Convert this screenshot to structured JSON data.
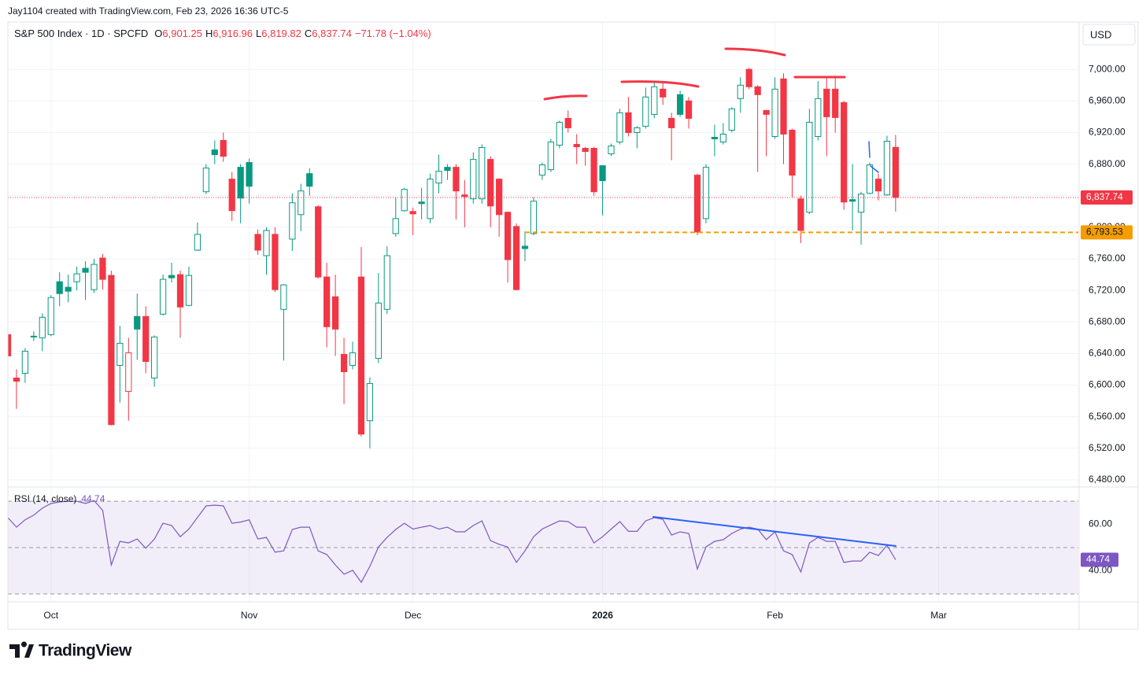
{
  "header": {
    "credit": "Jay1104 created with TradingView.com, Feb 23, 2026 16:36 UTC-5",
    "currency": "USD"
  },
  "footer": {
    "logo": "TradingView"
  },
  "chart_data": [
    {
      "type": "candlestick",
      "title": "S&P 500 Index · 1D · SPCFD",
      "legend_values": [
        {
          "key": "O",
          "value": "6,901.25"
        },
        {
          "key": "H",
          "value": "6,916.96"
        },
        {
          "key": "L",
          "value": "6,819.82"
        },
        {
          "key": "C",
          "value": "6,837.74"
        }
      ],
      "change": "−71.78 (−1.04%)",
      "up_color": "#089981",
      "down_color": "#f23645",
      "xlim": [
        0,
        124.2
      ],
      "xticks": [
        {
          "value": 5,
          "label": "Oct"
        },
        {
          "value": 28,
          "label": "Nov"
        },
        {
          "value": 47,
          "label": "Dec"
        },
        {
          "value": 69,
          "label": "2026"
        },
        {
          "value": 89,
          "label": "Feb"
        },
        {
          "value": 108,
          "label": "Mar"
        }
      ],
      "ylim": [
        6472,
        7060
      ],
      "yticks": [
        {
          "value": 6480,
          "label": "6,480.00"
        },
        {
          "value": 6520,
          "label": "6,520.00"
        },
        {
          "value": 6560,
          "label": "6,560.00"
        },
        {
          "value": 6600,
          "label": "6,600.00"
        },
        {
          "value": 6640,
          "label": "6,640.00"
        },
        {
          "value": 6680,
          "label": "6,680.00"
        },
        {
          "value": 6720,
          "label": "6,720.00"
        },
        {
          "value": 6760,
          "label": "6,760.00"
        },
        {
          "value": 6800,
          "label": "6,800.00"
        },
        {
          "value": 6840,
          "label": "6,840.00"
        },
        {
          "value": 6880,
          "label": "6,880.00"
        },
        {
          "value": 6920,
          "label": "6,920.00"
        },
        {
          "value": 6960,
          "label": "6,960.00"
        },
        {
          "value": 7000,
          "label": "7,000.00"
        }
      ],
      "grid": true,
      "open": [
        6664,
        6609,
        6615,
        6662,
        6660,
        6664,
        6731,
        6724,
        6731,
        6748,
        6721,
        6761,
        6739,
        6625,
        6592,
        6687,
        6687,
        6609,
        6690,
        6739,
        6740,
        6701,
        6771,
        6845,
        6898,
        6910,
        6861,
        6876,
        6882,
        6791,
        6764,
        6791,
        6696,
        6785,
        6816,
        6868,
        6826,
        6737,
        6712,
        6639,
        6625,
        6737,
        6555,
        6634,
        6696,
        6792,
        6821,
        6820,
        6832,
        6811,
        6856,
        6876,
        6876,
        6841,
        6836,
        6836,
        6886,
        6861,
        6819,
        6801,
        6776,
        6792,
        6866,
        6873,
        6904,
        6938,
        6905,
        6900,
        6900,
        6878,
        6893,
        6908,
        6945,
        6920,
        6928,
        6943,
        6975,
        6938,
        6968,
        6960,
        6866,
        6811,
        6914,
        6908,
        6923,
        6963,
        7000,
        6978,
        6948,
        6915,
        6988,
        6923,
        6836,
        6819,
        6915,
        6975,
        6975,
        6958,
        6835,
        6819,
        6843,
        6861,
        6841,
        6901.25
      ],
      "high": [
        6664,
        6620,
        6647,
        6668,
        6691,
        6714,
        6743,
        6740,
        6750,
        6757,
        6760,
        6766,
        6745,
        6675,
        6660,
        6716,
        6700,
        6663,
        6740,
        6755,
        6745,
        6750,
        6806,
        6880,
        6910,
        6920,
        6870,
        6880,
        6887,
        6797,
        6800,
        6800,
        6728,
        6843,
        6855,
        6875,
        6828,
        6755,
        6740,
        6660,
        6655,
        6775,
        6610,
        6742,
        6776,
        6838,
        6850,
        6825,
        6850,
        6868,
        6892,
        6880,
        6880,
        6860,
        6895,
        6905,
        6890,
        6862,
        6820,
        6805,
        6795,
        6838,
        6882,
        6912,
        6935,
        6948,
        6918,
        6902,
        6902,
        6878,
        6906,
        6950,
        6965,
        6928,
        6977,
        6985,
        6985,
        6945,
        6973,
        6965,
        6868,
        6880,
        6930,
        6932,
        6952,
        6990,
        7002,
        6980,
        6948,
        6990,
        6995,
        6925,
        6840,
        6950,
        6985,
        6990,
        6992,
        6960,
        6880,
        6845,
        6882,
        6868,
        6916,
        6916.96
      ],
      "low": [
        6637,
        6570,
        6603,
        6656,
        6643,
        6662,
        6700,
        6705,
        6720,
        6708,
        6717,
        6721,
        6549,
        6578,
        6555,
        6632,
        6615,
        6598,
        6688,
        6730,
        6660,
        6700,
        6770,
        6842,
        6880,
        6883,
        6808,
        6805,
        6830,
        6765,
        6740,
        6718,
        6631,
        6770,
        6795,
        6840,
        6735,
        6648,
        6637,
        6576,
        6620,
        6535,
        6520,
        6628,
        6690,
        6788,
        6820,
        6790,
        6810,
        6805,
        6843,
        6860,
        6810,
        6800,
        6830,
        6830,
        6800,
        6788,
        6730,
        6720,
        6757,
        6790,
        6860,
        6870,
        6900,
        6920,
        6880,
        6878,
        6840,
        6815,
        6890,
        6905,
        6915,
        6900,
        6925,
        6938,
        6955,
        6885,
        6940,
        6925,
        6790,
        6805,
        6890,
        6905,
        6920,
        6945,
        6975,
        6870,
        6890,
        6912,
        6880,
        6838,
        6780,
        6817,
        6910,
        6890,
        6920,
        6822,
        6796,
        6778,
        6842,
        6834,
        6840,
        6819.82
      ],
      "close": [
        6637,
        6605,
        6643,
        6661,
        6686,
        6711,
        6716,
        6719,
        6741,
        6743,
        6753,
        6734,
        6550,
        6653,
        6641,
        6671,
        6630,
        6661,
        6734,
        6736,
        6699,
        6739,
        6791,
        6875,
        6892,
        6890,
        6821,
        6837,
        6852,
        6771,
        6796,
        6721,
        6727,
        6831,
        6846,
        6852,
        6737,
        6674,
        6671,
        6617,
        6641,
        6538,
        6602,
        6704,
        6764,
        6811,
        6848,
        6817,
        6830,
        6861,
        6871,
        6872,
        6846,
        6839,
        6886,
        6901,
        6827,
        6816,
        6759,
        6721,
        6773,
        6833,
        6879,
        6908,
        6933,
        6926,
        6902,
        6896,
        6845,
        6859,
        6903,
        6945,
        6920,
        6926,
        6965,
        6978,
        6965,
        6926,
        6943,
        6938,
        6794,
        6876,
        6912,
        6918,
        6950,
        6980,
        6978,
        6968,
        6943,
        6975,
        6918,
        6866,
        6796,
        6933,
        6963,
        6940,
        6939,
        6832,
        6833,
        6842,
        6879,
        6846,
        6909,
        6837.74
      ],
      "last_price": {
        "value": 6837.74,
        "label": "6,837.74"
      },
      "hline": {
        "value": 6793.53,
        "label": "6,793.53",
        "color": "#f59d00"
      }
    },
    {
      "type": "line",
      "xlim": [
        0,
        124.2
      ],
      "ylim": [
        26.6,
        75.8
      ],
      "yticks": [
        {
          "value": 60,
          "label": "60.00"
        },
        {
          "value": 40,
          "label": "40.00"
        }
      ],
      "bands": [
        70,
        50,
        30
      ],
      "series": [
        {
          "name": "RSI (14, close)",
          "color": "#7e57c2",
          "value_label": "44.74",
          "values": [
            62.9,
            58.8,
            62,
            64,
            67,
            69,
            69.7,
            70,
            70,
            69,
            70.3,
            66,
            42.5,
            52.7,
            52,
            53.7,
            49.7,
            53.7,
            60.5,
            59.5,
            54.7,
            58,
            63,
            68,
            68.3,
            68,
            60.5,
            61,
            62,
            53.7,
            54.4,
            48,
            48.6,
            57.8,
            58.8,
            58.8,
            48.6,
            47,
            42.5,
            38.5,
            40.2,
            35,
            41.9,
            50.3,
            54.4,
            57.8,
            60.5,
            58,
            58.8,
            59.5,
            58,
            58.8,
            56.8,
            56.8,
            59.5,
            61.5,
            53,
            51.4,
            50.3,
            43.6,
            48.6,
            54.7,
            58,
            59.8,
            61.5,
            61.2,
            58.8,
            58.8,
            52,
            54.7,
            58,
            61.2,
            57,
            57,
            61.5,
            62.9,
            62.2,
            55.4,
            56.8,
            56.1,
            40.8,
            50.3,
            52.7,
            53.4,
            56.1,
            58,
            58.8,
            58,
            53.4,
            56.8,
            48.6,
            47,
            39.5,
            52,
            54.4,
            52.7,
            52.7,
            43.6,
            44.2,
            44.2,
            48,
            46.6,
            51,
            44.74
          ]
        }
      ]
    }
  ]
}
